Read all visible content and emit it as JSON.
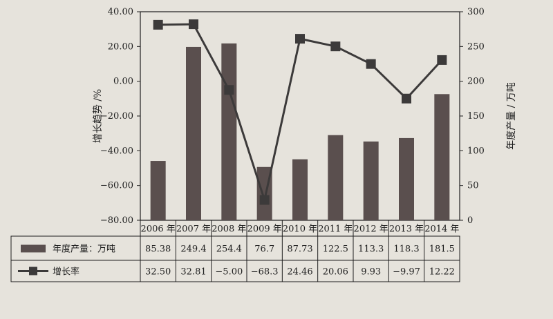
{
  "chart_data": {
    "type": "bar",
    "categories": [
      "2006 年",
      "2007 年",
      "2008 年",
      "2009 年",
      "2010 年",
      "2011 年",
      "2012 年",
      "2013 年",
      "2014 年"
    ],
    "series": [
      {
        "name": "年度产量：万吨",
        "type": "bar",
        "axis": "right",
        "values": [
          85.38,
          249.4,
          254.4,
          76.7,
          87.73,
          122.5,
          113.3,
          118.3,
          181.5
        ],
        "labels": [
          "85.38",
          "249.4",
          "254.4",
          "76.7",
          "87.73",
          "122.5",
          "113.3",
          "118.3",
          "181.5"
        ]
      },
      {
        "name": "增长率",
        "type": "line",
        "axis": "left",
        "values": [
          32.5,
          32.81,
          -5.0,
          -68.3,
          24.46,
          20.06,
          9.93,
          -9.97,
          12.22
        ],
        "labels": [
          "32.50",
          "32.81",
          "−5.00",
          "−68.3",
          "24.46",
          "20.06",
          "9.93",
          "−9.97",
          "12.22"
        ]
      }
    ],
    "y_left": {
      "label": "增长趋势 /%",
      "ylim": [
        -80,
        40
      ],
      "ticks": [
        "−80.00",
        "−60.00",
        "−40.00",
        "−20.00",
        "0.00",
        "20.00",
        "40.00"
      ]
    },
    "y_right": {
      "label": "年度产量 / 万吨",
      "ylim": [
        0,
        300
      ],
      "ticks": [
        "0",
        "50",
        "100",
        "150",
        "200",
        "250",
        "300"
      ]
    },
    "grid": false,
    "legend": "table-bottom",
    "colors": {
      "bar": "#5a4f4e",
      "line": "#3c3a3a",
      "background": "#e6e3dc"
    }
  }
}
